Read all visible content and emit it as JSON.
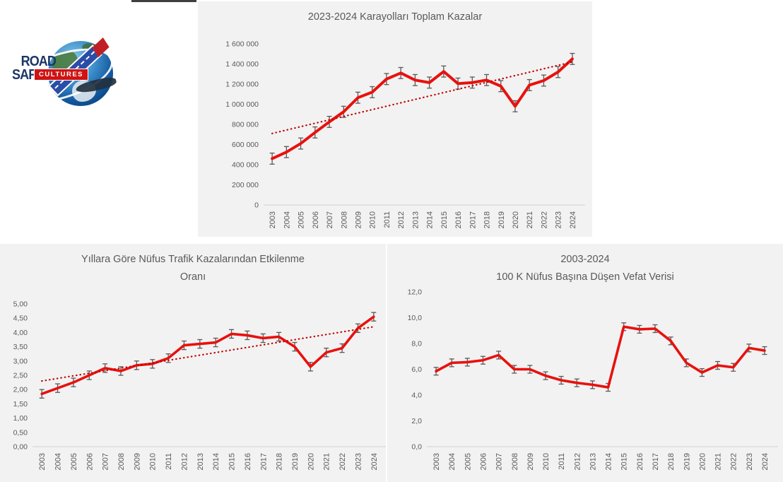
{
  "logo": {
    "road": "ROAD",
    "safety": "SAFETY",
    "cultures": "CULTURES"
  },
  "colors": {
    "line": "#e8110d",
    "trend": "#c00000",
    "error_bar": "#595959",
    "chart_bg": "#f2f2f2",
    "axis": "#d9d9d9",
    "text": "#595959",
    "logo_navy": "#1c3667",
    "logo_red": "#cf1313",
    "logo_road_blue": "#2a4da8"
  },
  "chart_data": [
    {
      "type": "line",
      "title_lines": [
        "2023-2024 Karayolları Toplam Kazalar"
      ],
      "xlabel": "",
      "ylabel": "",
      "grid": false,
      "legend": "none",
      "categories": [
        "2003",
        "2004",
        "2005",
        "2006",
        "2007",
        "2008",
        "2009",
        "2010",
        "2011",
        "2012",
        "2013",
        "2014",
        "2015",
        "2016",
        "2017",
        "2018",
        "2019",
        "2020",
        "2021",
        "2022",
        "2023",
        "2024"
      ],
      "values": [
        460000,
        525000,
        610000,
        720000,
        825000,
        925000,
        1065000,
        1120000,
        1250000,
        1310000,
        1240000,
        1215000,
        1325000,
        1205000,
        1215000,
        1240000,
        1180000,
        980000,
        1190000,
        1235000,
        1320000,
        1450000
      ],
      "error_bar": 55000,
      "trendline": {
        "start": 710000,
        "end": 1420000
      },
      "ylim": [
        0,
        1600000
      ],
      "ytick_values": [
        0,
        200000,
        400000,
        600000,
        800000,
        1000000,
        1200000,
        1400000,
        1600000
      ],
      "ytick_labels": [
        "0",
        "200 000",
        "400 000",
        "600 000",
        "800 000",
        "1 000 000",
        "1 200 000",
        "1 400 000",
        "1 600 000"
      ]
    },
    {
      "type": "line",
      "title_lines": [
        "Yıllara Göre Nüfus Trafik Kazalarından Etkilenme",
        "Oranı"
      ],
      "xlabel": "",
      "ylabel": "",
      "grid": false,
      "legend": "none",
      "categories": [
        "2003",
        "2004",
        "2005",
        "2006",
        "2007",
        "2008",
        "2009",
        "2010",
        "2011",
        "2012",
        "2013",
        "2014",
        "2015",
        "2016",
        "2017",
        "2018",
        "2019",
        "2020",
        "2021",
        "2022",
        "2023",
        "2024"
      ],
      "values": [
        1.85,
        2.05,
        2.25,
        2.5,
        2.75,
        2.65,
        2.85,
        2.9,
        3.1,
        3.55,
        3.6,
        3.65,
        3.95,
        3.9,
        3.8,
        3.85,
        3.5,
        2.8,
        3.3,
        3.45,
        4.15,
        4.55
      ],
      "error_bar": 0.15,
      "trendline": {
        "start": 2.3,
        "end": 4.2
      },
      "ylim": [
        0,
        5
      ],
      "ytick_values": [
        0,
        0.5,
        1,
        1.5,
        2,
        2.5,
        3,
        3.5,
        4,
        4.5,
        5
      ],
      "ytick_labels": [
        "0,00",
        "0,50",
        "1,00",
        "1,50",
        "2,00",
        "2,50",
        "3,00",
        "3,50",
        "4,00",
        "4,50",
        "5,00"
      ]
    },
    {
      "type": "line",
      "title_lines": [
        "2003-2024",
        "100 K Nüfus Başına Düşen Vefat Verisi"
      ],
      "xlabel": "",
      "ylabel": "",
      "grid": false,
      "legend": "none",
      "categories": [
        "2003",
        "2004",
        "2005",
        "2006",
        "2007",
        "2008",
        "2009",
        "2010",
        "2011",
        "2012",
        "2013",
        "2014",
        "2015",
        "2016",
        "2017",
        "2018",
        "2019",
        "2020",
        "2021",
        "2022",
        "2023",
        "2024"
      ],
      "values": [
        5.85,
        6.5,
        6.55,
        6.7,
        7.1,
        6.0,
        6.0,
        5.5,
        5.15,
        4.95,
        4.8,
        4.6,
        9.3,
        9.1,
        9.15,
        8.2,
        6.5,
        5.75,
        6.3,
        6.15,
        7.65,
        7.45
      ],
      "error_bar": 0.3,
      "trendline": null,
      "ylim": [
        0,
        12
      ],
      "ytick_values": [
        0,
        2,
        4,
        6,
        8,
        10,
        12
      ],
      "ytick_labels": [
        "0,0",
        "2,0",
        "4,0",
        "6,0",
        "8,0",
        "10,0",
        "12,0"
      ]
    }
  ]
}
